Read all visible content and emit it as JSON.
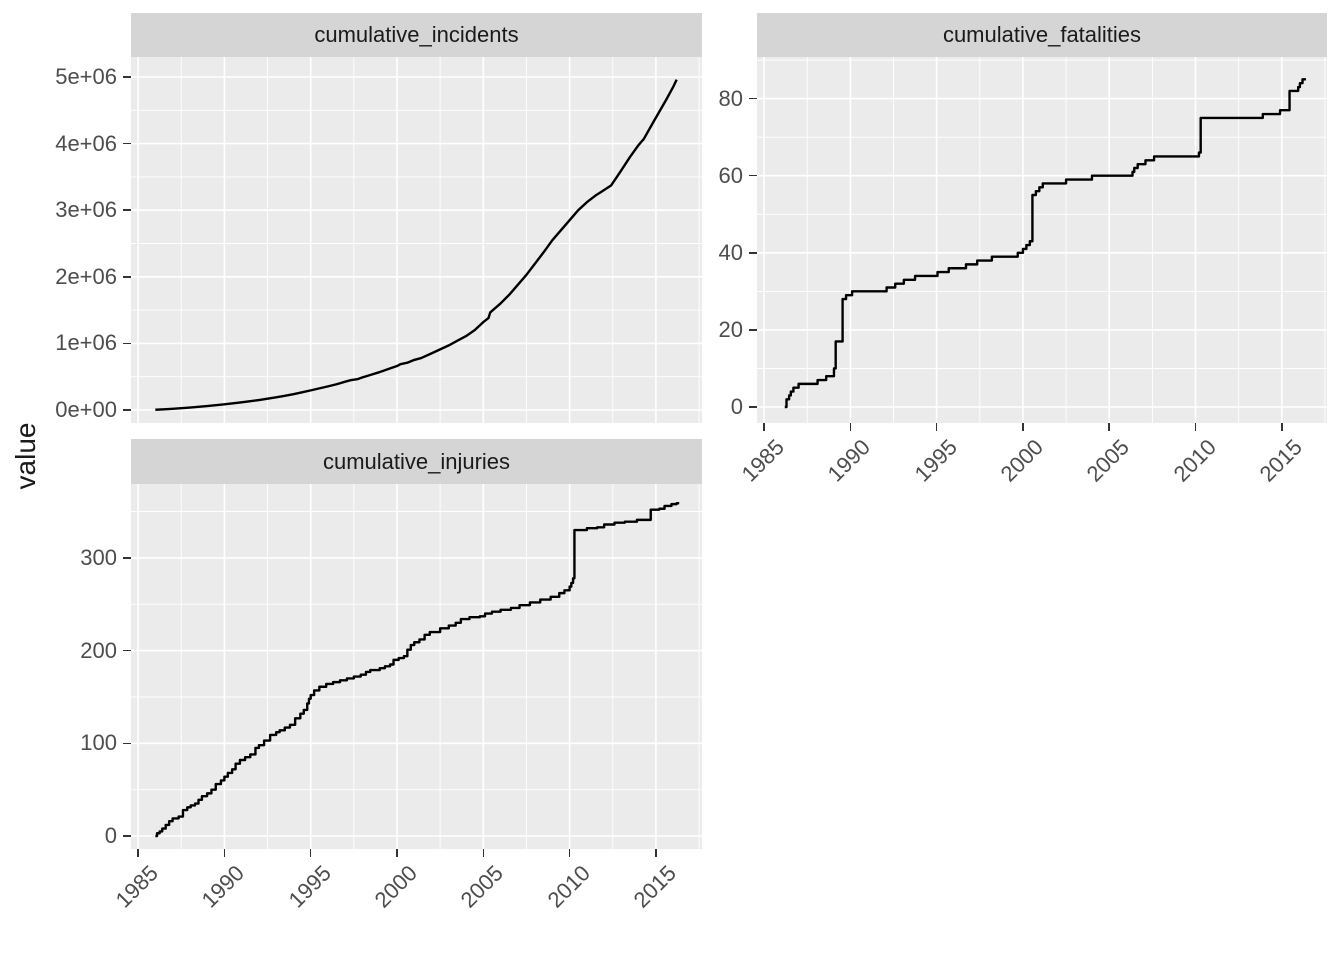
{
  "figure": {
    "ylab": "value",
    "background": "#FFFFFF",
    "panel_bg": "#EBEBEB",
    "strip_bg": "#D5D5D5",
    "grid_color": "#FFFFFF",
    "line_color": "#000000",
    "axis_text_color": "#4D4D4D",
    "strip_text_color": "#1A1A1A",
    "tick_color": "#333333"
  },
  "chart_data": [
    {
      "type": "line",
      "title": "cumulative_incidents",
      "interpolation": "linear",
      "legend": "none",
      "grid": "on",
      "x_range": [
        1984.59,
        2017.67
      ],
      "y_range": [
        -195000,
        5300000
      ],
      "x_ticks": {
        "values": [
          1985,
          1990,
          1995,
          2000,
          2005,
          2010,
          2015
        ],
        "labels": [
          "1985",
          "1990",
          "1995",
          "2000",
          "2005",
          "2010",
          "2015"
        ],
        "show_labels": false
      },
      "y_ticks": {
        "values": [
          0,
          1000000,
          2000000,
          3000000,
          4000000,
          5000000
        ],
        "labels": [
          "0e+00",
          "1e+06",
          "2e+06",
          "3e+06",
          "4e+06",
          "5e+06"
        ]
      },
      "points": [
        [
          1986.0,
          4000
        ],
        [
          1986.5,
          10000
        ],
        [
          1987.0,
          18000
        ],
        [
          1987.5,
          27000
        ],
        [
          1988.0,
          37000
        ],
        [
          1988.5,
          48000
        ],
        [
          1989.0,
          60000
        ],
        [
          1989.5,
          72000
        ],
        [
          1990.0,
          85000
        ],
        [
          1990.5,
          100000
        ],
        [
          1991.0,
          115000
        ],
        [
          1991.5,
          132000
        ],
        [
          1992.0,
          150000
        ],
        [
          1992.5,
          170000
        ],
        [
          1993.0,
          190000
        ],
        [
          1993.5,
          213000
        ],
        [
          1994.0,
          238000
        ],
        [
          1994.5,
          266000
        ],
        [
          1995.0,
          295000
        ],
        [
          1995.5,
          325000
        ],
        [
          1996.0,
          355000
        ],
        [
          1996.5,
          387000
        ],
        [
          1997.0,
          425000
        ],
        [
          1997.3,
          447000
        ],
        [
          1997.7,
          462000
        ],
        [
          1998.0,
          490000
        ],
        [
          1998.5,
          530000
        ],
        [
          1999.0,
          570000
        ],
        [
          1999.5,
          615000
        ],
        [
          2000.0,
          660000
        ],
        [
          2000.2,
          688000
        ],
        [
          2000.6,
          710000
        ],
        [
          2001.0,
          752000
        ],
        [
          2001.4,
          780000
        ],
        [
          2002.0,
          850000
        ],
        [
          2002.5,
          910000
        ],
        [
          2003.0,
          970000
        ],
        [
          2003.5,
          1040000
        ],
        [
          2004.0,
          1110000
        ],
        [
          2004.5,
          1200000
        ],
        [
          2005.0,
          1320000
        ],
        [
          2005.3,
          1380000
        ],
        [
          2005.4,
          1465000
        ],
        [
          2006.0,
          1600000
        ],
        [
          2006.5,
          1730000
        ],
        [
          2007.0,
          1880000
        ],
        [
          2007.5,
          2030000
        ],
        [
          2008.0,
          2200000
        ],
        [
          2008.5,
          2370000
        ],
        [
          2009.0,
          2550000
        ],
        [
          2009.5,
          2700000
        ],
        [
          2010.0,
          2850000
        ],
        [
          2010.5,
          3000000
        ],
        [
          2011.0,
          3120000
        ],
        [
          2011.5,
          3220000
        ],
        [
          2011.8,
          3270000
        ],
        [
          2012.4,
          3370000
        ],
        [
          2013.0,
          3600000
        ],
        [
          2013.5,
          3800000
        ],
        [
          2014.0,
          3980000
        ],
        [
          2014.3,
          4070000
        ],
        [
          2014.8,
          4300000
        ],
        [
          2015.2,
          4480000
        ],
        [
          2015.6,
          4660000
        ],
        [
          2016.0,
          4850000
        ],
        [
          2016.2,
          4960000
        ]
      ]
    },
    {
      "type": "line",
      "title": "cumulative_fatalities",
      "interpolation": "step-after",
      "legend": "none",
      "grid": "on",
      "x_range": [
        1984.59,
        2017.62
      ],
      "y_range": [
        -4.15,
        90.8
      ],
      "x_ticks": {
        "values": [
          1985,
          1990,
          1995,
          2000,
          2005,
          2010,
          2015
        ],
        "labels": [
          "1985",
          "1990",
          "1995",
          "2000",
          "2005",
          "2010",
          "2015"
        ],
        "show_labels": true
      },
      "y_ticks": {
        "values": [
          0,
          20,
          40,
          60,
          80
        ],
        "labels": [
          "0",
          "20",
          "40",
          "60",
          "80"
        ]
      },
      "points": [
        [
          1986.2,
          0
        ],
        [
          1986.3,
          2
        ],
        [
          1986.45,
          3
        ],
        [
          1986.55,
          4
        ],
        [
          1986.7,
          5
        ],
        [
          1987.0,
          6
        ],
        [
          1988.1,
          7
        ],
        [
          1988.6,
          8
        ],
        [
          1989.05,
          10
        ],
        [
          1989.15,
          17
        ],
        [
          1989.55,
          28
        ],
        [
          1989.75,
          29
        ],
        [
          1990.1,
          30
        ],
        [
          1992.1,
          31
        ],
        [
          1992.6,
          32
        ],
        [
          1993.1,
          33
        ],
        [
          1993.75,
          34
        ],
        [
          1995.05,
          35
        ],
        [
          1995.7,
          36
        ],
        [
          1996.7,
          37
        ],
        [
          1997.35,
          38
        ],
        [
          1998.2,
          39
        ],
        [
          1999.7,
          40
        ],
        [
          2000.0,
          41
        ],
        [
          2000.2,
          42
        ],
        [
          2000.4,
          43
        ],
        [
          2000.55,
          55
        ],
        [
          2000.75,
          56
        ],
        [
          2000.95,
          57
        ],
        [
          2001.15,
          58
        ],
        [
          2002.5,
          59
        ],
        [
          2004.0,
          60
        ],
        [
          2006.35,
          61
        ],
        [
          2006.45,
          62
        ],
        [
          2006.65,
          63
        ],
        [
          2007.1,
          64
        ],
        [
          2007.6,
          65
        ],
        [
          2010.2,
          66
        ],
        [
          2010.3,
          75
        ],
        [
          2013.9,
          76
        ],
        [
          2014.9,
          77
        ],
        [
          2015.45,
          82
        ],
        [
          2015.95,
          83
        ],
        [
          2016.05,
          84
        ],
        [
          2016.2,
          85
        ],
        [
          2016.4,
          85
        ]
      ]
    },
    {
      "type": "line",
      "title": "cumulative_injuries",
      "interpolation": "step-after",
      "legend": "none",
      "grid": "on",
      "x_range": [
        1984.59,
        2017.67
      ],
      "y_range": [
        -14.0,
        379.7
      ],
      "x_ticks": {
        "values": [
          1985,
          1990,
          1995,
          2000,
          2005,
          2010,
          2015
        ],
        "labels": [
          "1985",
          "1990",
          "1995",
          "2000",
          "2005",
          "2010",
          "2015"
        ],
        "show_labels": true
      },
      "y_ticks": {
        "values": [
          0,
          100,
          200,
          300
        ],
        "labels": [
          "0",
          "100",
          "200",
          "300"
        ]
      },
      "points": [
        [
          1986.0,
          0
        ],
        [
          1986.1,
          3
        ],
        [
          1986.25,
          5
        ],
        [
          1986.4,
          8
        ],
        [
          1986.6,
          12
        ],
        [
          1986.8,
          16
        ],
        [
          1987.0,
          19
        ],
        [
          1987.35,
          21
        ],
        [
          1987.6,
          28
        ],
        [
          1987.85,
          31
        ],
        [
          1988.05,
          33
        ],
        [
          1988.3,
          35
        ],
        [
          1988.5,
          39
        ],
        [
          1988.7,
          43
        ],
        [
          1989.0,
          46
        ],
        [
          1989.25,
          50
        ],
        [
          1989.5,
          56
        ],
        [
          1989.8,
          60
        ],
        [
          1990.0,
          64
        ],
        [
          1990.2,
          68
        ],
        [
          1990.45,
          72
        ],
        [
          1990.65,
          78
        ],
        [
          1990.9,
          82
        ],
        [
          1991.2,
          85
        ],
        [
          1991.5,
          88
        ],
        [
          1991.8,
          95
        ],
        [
          1992.0,
          98
        ],
        [
          1992.3,
          103
        ],
        [
          1992.65,
          109
        ],
        [
          1993.0,
          112
        ],
        [
          1993.2,
          114
        ],
        [
          1993.5,
          117
        ],
        [
          1993.8,
          120
        ],
        [
          1994.1,
          127
        ],
        [
          1994.4,
          132
        ],
        [
          1994.6,
          136
        ],
        [
          1994.8,
          143
        ],
        [
          1994.9,
          148
        ],
        [
          1995.0,
          152
        ],
        [
          1995.2,
          157
        ],
        [
          1995.5,
          161
        ],
        [
          1995.9,
          164
        ],
        [
          1996.3,
          166
        ],
        [
          1996.7,
          168
        ],
        [
          1997.1,
          170
        ],
        [
          1997.5,
          172
        ],
        [
          1997.9,
          174
        ],
        [
          1998.2,
          177
        ],
        [
          1998.45,
          179
        ],
        [
          1999.0,
          181
        ],
        [
          1999.3,
          183
        ],
        [
          1999.6,
          185
        ],
        [
          1999.8,
          190
        ],
        [
          2000.1,
          192
        ],
        [
          2000.4,
          194
        ],
        [
          2000.6,
          201
        ],
        [
          2000.8,
          206
        ],
        [
          2001.0,
          209
        ],
        [
          2001.3,
          212
        ],
        [
          2001.6,
          217
        ],
        [
          2001.9,
          220
        ],
        [
          2002.5,
          224
        ],
        [
          2003.0,
          227
        ],
        [
          2003.4,
          230
        ],
        [
          2003.7,
          234
        ],
        [
          2004.2,
          236
        ],
        [
          2004.8,
          237
        ],
        [
          2005.1,
          240
        ],
        [
          2005.5,
          242
        ],
        [
          2006.0,
          244
        ],
        [
          2006.6,
          246
        ],
        [
          2007.1,
          249
        ],
        [
          2007.7,
          252
        ],
        [
          2008.3,
          255
        ],
        [
          2008.9,
          258
        ],
        [
          2009.4,
          262
        ],
        [
          2009.7,
          265
        ],
        [
          2010.0,
          269
        ],
        [
          2010.1,
          273
        ],
        [
          2010.2,
          278
        ],
        [
          2010.28,
          330
        ],
        [
          2011.0,
          332
        ],
        [
          2011.6,
          333
        ],
        [
          2012.0,
          336
        ],
        [
          2012.6,
          338
        ],
        [
          2013.2,
          339
        ],
        [
          2013.9,
          341
        ],
        [
          2014.7,
          352
        ],
        [
          2015.2,
          353
        ],
        [
          2015.5,
          356
        ],
        [
          2015.9,
          358
        ],
        [
          2016.2,
          359
        ],
        [
          2016.35,
          359
        ]
      ]
    }
  ]
}
